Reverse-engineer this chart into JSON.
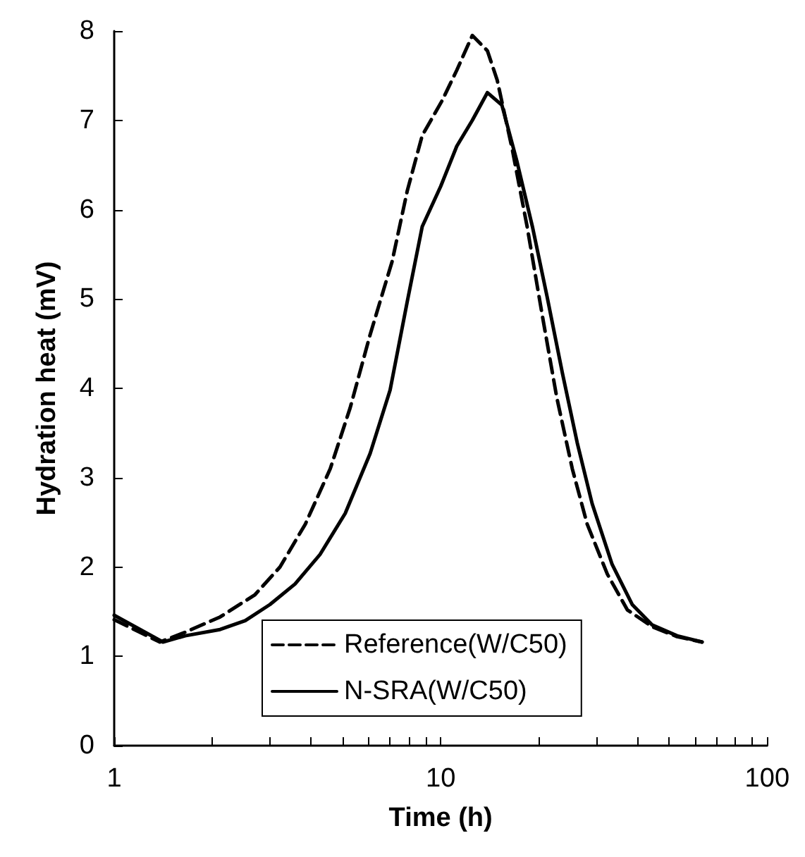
{
  "chart_data": {
    "type": "line",
    "xlabel": "Time (h)",
    "ylabel": "Hydration heat (mV)",
    "log": "x",
    "xlim": [
      1,
      100
    ],
    "xticks": [
      1,
      10,
      100
    ],
    "ylim": [
      0,
      8
    ],
    "yticks": [
      0,
      1,
      2,
      3,
      4,
      5,
      6,
      7,
      8
    ],
    "grid": false,
    "legend": "bottom",
    "marker": "none",
    "series": [
      {
        "name": "Reference(W/C50)",
        "color": "#000000",
        "line_style": "dashed",
        "x": [
          1,
          1.38,
          1.65,
          2.11,
          2.7,
          3.22,
          3.85,
          4.59,
          5.28,
          6.08,
          7.1,
          7.9,
          8.78,
          10.1,
          11.2,
          12.5,
          13.9,
          14.9,
          16.6,
          18.4,
          20.4,
          22.7,
          25.3,
          28.1,
          32.4,
          37.3,
          44.5,
          53,
          63.2
        ],
        "values": [
          1.41,
          1.16,
          1.27,
          1.44,
          1.69,
          2.0,
          2.48,
          3.1,
          3.78,
          4.6,
          5.42,
          6.21,
          6.83,
          7.22,
          7.56,
          7.95,
          7.78,
          7.45,
          6.66,
          5.81,
          4.85,
          3.89,
          3.1,
          2.48,
          1.92,
          1.52,
          1.33,
          1.22,
          1.16
        ]
      },
      {
        "name": "N-SRA(W/C50)",
        "color": "#000000",
        "line_style": "solid",
        "x": [
          1,
          1.41,
          1.65,
          2.11,
          2.52,
          3.0,
          3.58,
          4.27,
          5.1,
          6.08,
          7.0,
          7.9,
          8.78,
          10,
          11.2,
          12.5,
          13.9,
          15.4,
          17.1,
          19.1,
          21.2,
          23.6,
          26.2,
          29.1,
          33.5,
          38.6,
          44.5,
          53,
          63.2
        ],
        "values": [
          1.46,
          1.16,
          1.23,
          1.3,
          1.4,
          1.58,
          1.81,
          2.14,
          2.6,
          3.27,
          3.98,
          4.97,
          5.81,
          6.26,
          6.71,
          7.0,
          7.31,
          7.17,
          6.55,
          5.81,
          5.02,
          4.17,
          3.39,
          2.71,
          2.03,
          1.58,
          1.35,
          1.23,
          1.16
        ]
      }
    ]
  }
}
